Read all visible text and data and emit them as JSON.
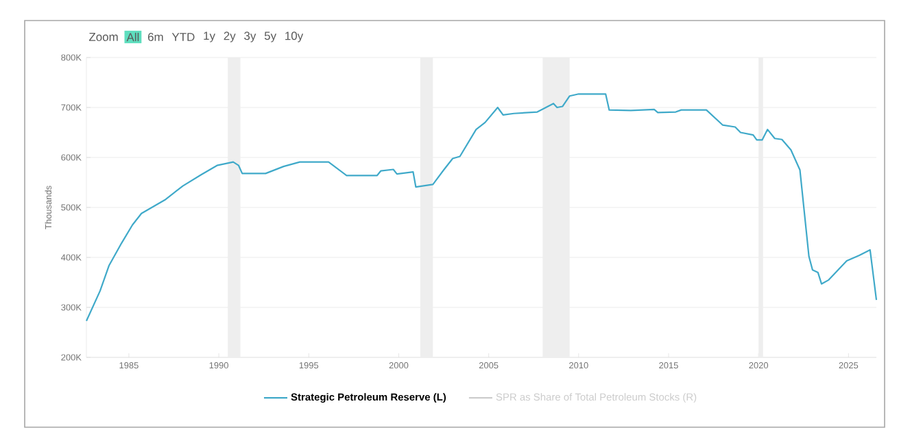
{
  "chart_data": {
    "type": "line",
    "ylabel": "Thousands",
    "annotations": [
      "Zoom",
      "All",
      "6m",
      "YTD",
      "1y",
      "2y",
      "3y",
      "5y",
      "10y"
    ],
    "xlim": [
      1982.64,
      2026.55
    ],
    "xticks": [
      1985,
      1990,
      1995,
      2000,
      2005,
      2010,
      2015,
      2020,
      2025
    ],
    "ylim": [
      200000,
      800000
    ],
    "yticks": [
      {
        "value": 200000,
        "label": "200K"
      },
      {
        "value": 300000,
        "label": "300K"
      },
      {
        "value": 400000,
        "label": "400K"
      },
      {
        "value": 500000,
        "label": "500K"
      },
      {
        "value": 600000,
        "label": "600K"
      },
      {
        "value": 700000,
        "label": "700K"
      },
      {
        "value": 800000,
        "label": "800K"
      }
    ],
    "grid": "y",
    "legend": "bottom",
    "bands": [
      {
        "axis": "x",
        "from": 1990.5,
        "to": 1991.2,
        "color": "#eeeeee"
      },
      {
        "axis": "x",
        "from": 2001.2,
        "to": 2001.9,
        "color": "#eeeeee"
      },
      {
        "axis": "x",
        "from": 2008.0,
        "to": 2009.5,
        "color": "#eeeeee"
      },
      {
        "axis": "x",
        "from": 2020.0,
        "to": 2020.25,
        "color": "#eeeeee"
      }
    ],
    "series": [
      {
        "name": "Strategic Petroleum Reserve (L)",
        "color": "#3fa9c9",
        "x": [
          1982.64,
          1983.4,
          1983.9,
          1984.6,
          1985.2,
          1985.7,
          1987.0,
          1988.0,
          1989.0,
          1989.9,
          1990.8,
          1991.1,
          1991.3,
          1992.6,
          1993.6,
          1994.5,
          1996.1,
          1997.1,
          1998.8,
          1999.0,
          1999.7,
          1999.9,
          2000.8,
          2000.95,
          2001.9,
          2002.5,
          2003.0,
          2003.4,
          2004.3,
          2004.8,
          2005.5,
          2005.8,
          2006.4,
          2007.7,
          2008.6,
          2008.8,
          2009.1,
          2009.5,
          2010.0,
          2011.5,
          2011.7,
          2012.9,
          2014.2,
          2014.4,
          2015.4,
          2015.7,
          2017.1,
          2018.0,
          2018.7,
          2019.0,
          2019.7,
          2019.9,
          2020.2,
          2020.5,
          2020.9,
          2021.3,
          2021.8,
          2022.3,
          2022.8,
          2023.0,
          2023.3,
          2023.5,
          2023.9,
          2024.9,
          2025.6,
          2026.2,
          2026.55
        ],
        "values": [
          273000,
          333000,
          384000,
          429000,
          465000,
          488000,
          515000,
          543000,
          565000,
          584000,
          591000,
          584000,
          568000,
          568000,
          582000,
          591000,
          591000,
          564000,
          564000,
          573000,
          576000,
          567000,
          571000,
          541000,
          546000,
          575000,
          598000,
          602000,
          656000,
          670000,
          700000,
          685000,
          688000,
          691000,
          708000,
          700000,
          702000,
          723000,
          727000,
          727000,
          695000,
          694000,
          696000,
          690000,
          691000,
          695000,
          695000,
          665000,
          661000,
          650000,
          645000,
          635000,
          635000,
          656000,
          638000,
          636000,
          615000,
          575000,
          402000,
          375000,
          370000,
          347000,
          355000,
          393000,
          404000,
          415000,
          315000
        ]
      },
      {
        "name": "SPR as Share of Total Petroleum Stocks (R)",
        "color": "#cccccc"
      }
    ]
  }
}
